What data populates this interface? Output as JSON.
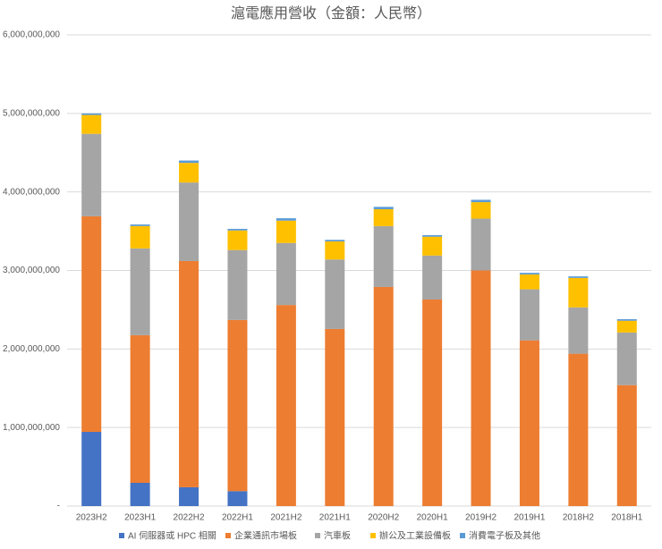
{
  "chart_data": {
    "type": "stacked_bar",
    "title": "滬電應用營收（金額：人民幣）",
    "categories": [
      "2023H2",
      "2023H1",
      "2022H2",
      "2022H1",
      "2021H2",
      "2021H1",
      "2020H2",
      "2020H1",
      "2019H2",
      "2019H1",
      "2018H2",
      "2018H1"
    ],
    "series": [
      {
        "name": "AI 伺服器或 HPC 相關",
        "color": "#4472c4",
        "values": [
          945000000,
          296000000,
          240000000,
          190000000,
          0,
          0,
          0,
          0,
          0,
          0,
          0,
          0
        ]
      },
      {
        "name": "企業通訊市場板",
        "color": "#ed7d31",
        "values": [
          2745000000,
          1880000000,
          2880000000,
          2180000000,
          2560000000,
          2255000000,
          2790000000,
          2630000000,
          3000000000,
          2110000000,
          1940000000,
          1540000000
        ]
      },
      {
        "name": "汽車板",
        "color": "#a5a5a5",
        "values": [
          1050000000,
          1105000000,
          1000000000,
          890000000,
          790000000,
          885000000,
          775000000,
          560000000,
          660000000,
          650000000,
          590000000,
          670000000
        ]
      },
      {
        "name": "辦公及工業設備板",
        "color": "#ffc000",
        "values": [
          240000000,
          285000000,
          250000000,
          250000000,
          285000000,
          230000000,
          215000000,
          240000000,
          210000000,
          190000000,
          375000000,
          150000000
        ]
      },
      {
        "name": "消費電子板及其他",
        "color": "#5b9bd5",
        "values": [
          20000000,
          20000000,
          30000000,
          20000000,
          30000000,
          20000000,
          30000000,
          20000000,
          30000000,
          20000000,
          20000000,
          20000000
        ]
      }
    ],
    "ylim": [
      0,
      6000000000
    ],
    "yticks": [
      {
        "value": 0,
        "label": "-"
      },
      {
        "value": 1000000000,
        "label": "1,000,000,000"
      },
      {
        "value": 2000000000,
        "label": "2,000,000,000"
      },
      {
        "value": 3000000000,
        "label": "3,000,000,000"
      },
      {
        "value": 4000000000,
        "label": "4,000,000,000"
      },
      {
        "value": 5000000000,
        "label": "5,000,000,000"
      },
      {
        "value": 6000000000,
        "label": "6,000,000,000"
      }
    ],
    "grid": true,
    "legend": "bottom"
  }
}
